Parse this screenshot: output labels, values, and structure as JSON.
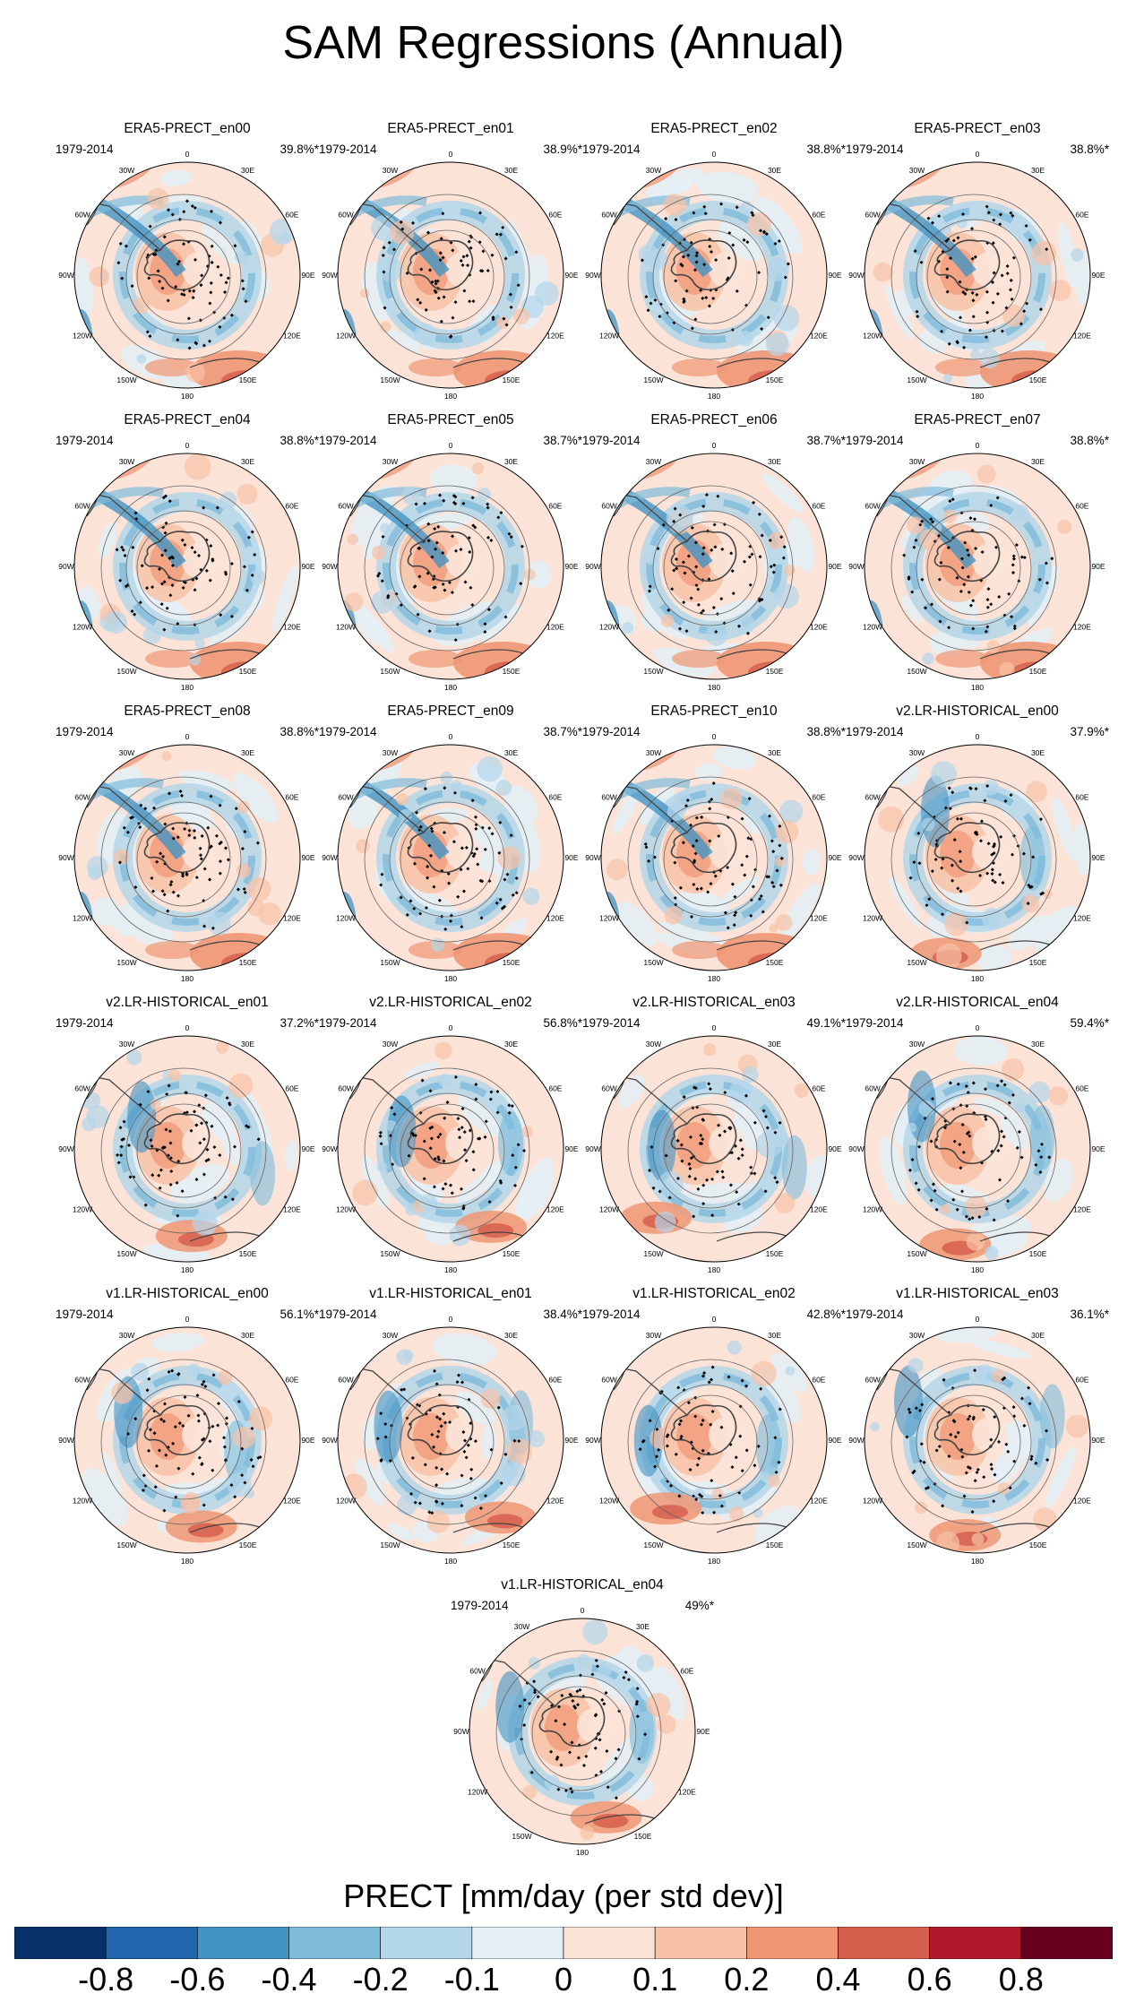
{
  "title": "SAM Regressions (Annual)",
  "period": "1979-2014",
  "longitude_labels": [
    "0",
    "30E",
    "60E",
    "90E",
    "120E",
    "150E",
    "180",
    "150W",
    "120W",
    "90W",
    "60W",
    "30W"
  ],
  "panels": [
    {
      "name": "ERA5-PRECT_en00",
      "pct": "39.8%*",
      "style": "era5"
    },
    {
      "name": "ERA5-PRECT_en01",
      "pct": "38.9%*",
      "style": "era5"
    },
    {
      "name": "ERA5-PRECT_en02",
      "pct": "38.8%*",
      "style": "era5"
    },
    {
      "name": "ERA5-PRECT_en03",
      "pct": "38.8%*",
      "style": "era5"
    },
    {
      "name": "ERA5-PRECT_en04",
      "pct": "38.8%*",
      "style": "era5"
    },
    {
      "name": "ERA5-PRECT_en05",
      "pct": "38.7%*",
      "style": "era5"
    },
    {
      "name": "ERA5-PRECT_en06",
      "pct": "38.7%*",
      "style": "era5"
    },
    {
      "name": "ERA5-PRECT_en07",
      "pct": "38.8%*",
      "style": "era5"
    },
    {
      "name": "ERA5-PRECT_en08",
      "pct": "38.8%*",
      "style": "era5"
    },
    {
      "name": "ERA5-PRECT_en09",
      "pct": "38.7%*",
      "style": "era5"
    },
    {
      "name": "ERA5-PRECT_en10",
      "pct": "38.8%*",
      "style": "era5"
    },
    {
      "name": "v2.LR-HISTORICAL_en00",
      "pct": "37.9%*",
      "style": "model"
    },
    {
      "name": "v2.LR-HISTORICAL_en01",
      "pct": "37.2%*",
      "style": "model"
    },
    {
      "name": "v2.LR-HISTORICAL_en02",
      "pct": "56.8%*",
      "style": "model"
    },
    {
      "name": "v2.LR-HISTORICAL_en03",
      "pct": "49.1%*",
      "style": "model"
    },
    {
      "name": "v2.LR-HISTORICAL_en04",
      "pct": "59.4%*",
      "style": "model"
    },
    {
      "name": "v1.LR-HISTORICAL_en00",
      "pct": "56.1%*",
      "style": "model"
    },
    {
      "name": "v1.LR-HISTORICAL_en01",
      "pct": "38.4%*",
      "style": "model"
    },
    {
      "name": "v1.LR-HISTORICAL_en02",
      "pct": "42.8%*",
      "style": "model"
    },
    {
      "name": "v1.LR-HISTORICAL_en03",
      "pct": "36.1%*",
      "style": "model"
    },
    {
      "name": "v1.LR-HISTORICAL_en04",
      "pct": "49%*",
      "style": "model"
    }
  ],
  "colorbar": {
    "title": "PRECT [mm/day (per std dev)]",
    "colors": [
      "#08306b",
      "#2166ac",
      "#4393c3",
      "#7fbcdc",
      "#b4d6e9",
      "#e4eef5",
      "#fbe3d8",
      "#f8c2a6",
      "#ef9674",
      "#d6604d",
      "#b2182b",
      "#67001f"
    ],
    "ticks": [
      "-0.8",
      "-0.6",
      "-0.4",
      "-0.2",
      "-0.1",
      "0",
      "0.1",
      "0.2",
      "0.4",
      "0.6",
      "0.8"
    ]
  }
}
